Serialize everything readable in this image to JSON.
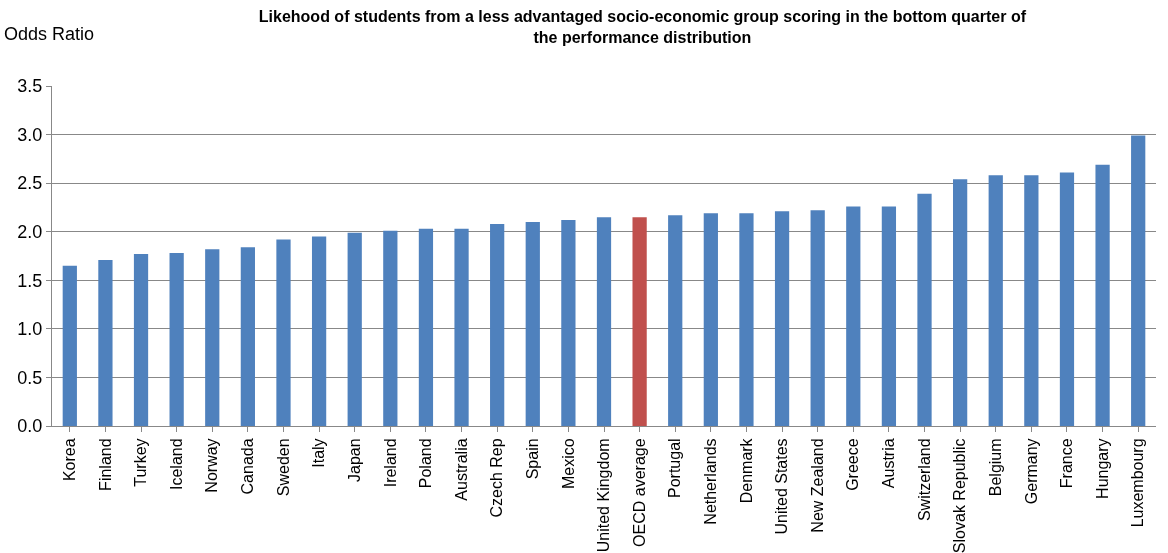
{
  "chart_data": {
    "type": "bar",
    "title": "Likehood of students from a less advantaged socio-economic group scoring in the bottom quarter of the performance distribution",
    "ylabel": "Odds Ratio",
    "categories": [
      "Korea",
      "Finland",
      "Turkey",
      "Iceland",
      "Norway",
      "Canada",
      "Sweden",
      "Italy",
      "Japan",
      "Ireland",
      "Poland",
      "Australia",
      "Czech Rep",
      "Spain",
      "Mexico",
      "United Kingdom",
      "OECD average",
      "Portugal",
      "Netherlands",
      "Denmark",
      "United States",
      "New Zealand",
      "Greece",
      "Austria",
      "Switzerland",
      "Slovak Republic",
      "Belgium",
      "Germany",
      "France",
      "Hungary",
      "Luxembourg"
    ],
    "values": [
      1.65,
      1.71,
      1.77,
      1.78,
      1.82,
      1.84,
      1.92,
      1.95,
      1.99,
      2.01,
      2.03,
      2.03,
      2.08,
      2.1,
      2.12,
      2.15,
      2.15,
      2.17,
      2.19,
      2.19,
      2.21,
      2.22,
      2.26,
      2.26,
      2.39,
      2.54,
      2.58,
      2.58,
      2.61,
      2.69,
      2.99
    ],
    "colors": [
      "#4f81bd",
      "#4f81bd",
      "#4f81bd",
      "#4f81bd",
      "#4f81bd",
      "#4f81bd",
      "#4f81bd",
      "#4f81bd",
      "#4f81bd",
      "#4f81bd",
      "#4f81bd",
      "#4f81bd",
      "#4f81bd",
      "#4f81bd",
      "#4f81bd",
      "#4f81bd",
      "#c0504d",
      "#4f81bd",
      "#4f81bd",
      "#4f81bd",
      "#4f81bd",
      "#4f81bd",
      "#4f81bd",
      "#4f81bd",
      "#4f81bd",
      "#4f81bd",
      "#4f81bd",
      "#4f81bd",
      "#4f81bd",
      "#4f81bd",
      "#4f81bd"
    ],
    "ylim": [
      0,
      3.5
    ],
    "yticks": [
      {
        "value": 0,
        "label": "0.0"
      },
      {
        "value": 0.5,
        "label": "0.5"
      },
      {
        "value": 1,
        "label": "1.0"
      },
      {
        "value": 1.5,
        "label": "1.5"
      },
      {
        "value": 2,
        "label": "2.0"
      },
      {
        "value": 2.5,
        "label": "2.5"
      },
      {
        "value": 3,
        "label": "3.0"
      },
      {
        "value": 3.5,
        "label": "3.5"
      }
    ],
    "grid": "y"
  }
}
